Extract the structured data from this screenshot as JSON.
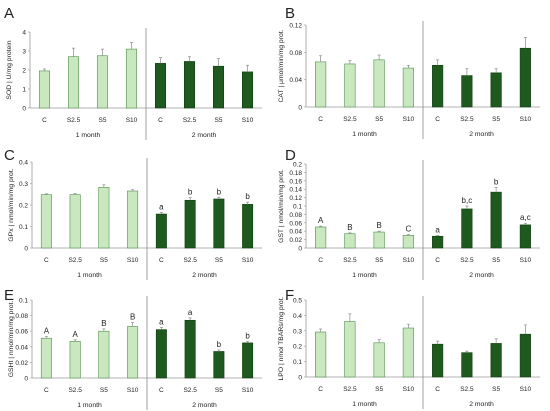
{
  "colors": {
    "month1_fill": "#c9e8c0",
    "month1_stroke": "#4f8f4a",
    "month2_fill": "#1e5a1e",
    "month2_stroke": "#123d12",
    "axis": "#9a9a9a",
    "error_bar": "#8a8a8a",
    "separator": "#8a8a8a",
    "text": "#222222"
  },
  "chart_data": [
    {
      "type": "bar",
      "panel": "A",
      "ylabel": "SOD | U/mg protein",
      "ylim": [
        0,
        4
      ],
      "yticks": [
        "0",
        "1",
        "2",
        "3",
        "4"
      ],
      "categories": [
        "C",
        "S2.5",
        "S5",
        "S10",
        "C",
        "S2.5",
        "S5",
        "S10"
      ],
      "groups": [
        "1 month",
        "2 month"
      ],
      "values": [
        1.95,
        2.7,
        2.75,
        3.1,
        2.35,
        2.45,
        2.2,
        1.9
      ],
      "errors": [
        0.1,
        0.45,
        0.35,
        0.35,
        0.3,
        0.25,
        0.4,
        0.35
      ],
      "letters": [
        "",
        "",
        "",
        "",
        "",
        "",
        "",
        ""
      ]
    },
    {
      "type": "bar",
      "panel": "B",
      "ylabel": "CAT | μmol/min/mg prot.",
      "ylim": [
        0,
        0.12
      ],
      "yticks": [
        "0",
        "0.04",
        "0.08",
        "0.12"
      ],
      "categories": [
        "C",
        "S2.5",
        "S5",
        "S10",
        "C",
        "S2.5",
        "S5",
        "S10"
      ],
      "groups": [
        "1 month",
        "2 month"
      ],
      "values": [
        0.066,
        0.063,
        0.069,
        0.057,
        0.061,
        0.046,
        0.05,
        0.086
      ],
      "errors": [
        0.009,
        0.005,
        0.007,
        0.004,
        0.008,
        0.01,
        0.006,
        0.016
      ],
      "letters": [
        "",
        "",
        "",
        "",
        "",
        "",
        "",
        ""
      ]
    },
    {
      "type": "bar",
      "panel": "C",
      "ylabel": "GPx | nmol/min/mg prot.",
      "ylim": [
        0,
        0.4
      ],
      "yticks": [
        "0",
        "0.1",
        "0.2",
        "0.3",
        "0.4"
      ],
      "categories": [
        "C",
        "S2.5",
        "S5",
        "S10",
        "C",
        "S2.5",
        "S5",
        "S10"
      ],
      "groups": [
        "1 month",
        "2 month"
      ],
      "values": [
        0.248,
        0.248,
        0.282,
        0.265,
        0.158,
        0.222,
        0.228,
        0.203
      ],
      "errors": [
        0.004,
        0.005,
        0.012,
        0.006,
        0.008,
        0.012,
        0.008,
        0.01
      ],
      "letters": [
        "",
        "",
        "",
        "",
        "a",
        "b",
        "b",
        "b"
      ]
    },
    {
      "type": "bar",
      "panel": "D",
      "ylabel": "GST | nmol/min/mg prot.",
      "ylim": [
        0,
        0.2
      ],
      "yticks": [
        "0",
        "0.02",
        "0.04",
        "0.06",
        "0.08",
        "0.1",
        "0.12",
        "0.14",
        "0.16",
        "0.18",
        "0.2"
      ],
      "categories": [
        "C",
        "S2.5",
        "S5",
        "S10",
        "C",
        "S2.5",
        "S5",
        "S10"
      ],
      "groups": [
        "1 month",
        "2 month"
      ],
      "values": [
        0.05,
        0.034,
        0.038,
        0.03,
        0.028,
        0.093,
        0.133,
        0.055
      ],
      "errors": [
        0.002,
        0.002,
        0.002,
        0.002,
        0.002,
        0.007,
        0.011,
        0.004
      ],
      "letters": [
        "A",
        "B",
        "B",
        "C",
        "a",
        "b,c",
        "b",
        "a,c"
      ]
    },
    {
      "type": "bar",
      "panel": "E",
      "ylabel": "GSHt | nmol/min/mg prot.",
      "ylim": [
        0,
        0.1
      ],
      "yticks": [
        "0",
        "0.02",
        "0.04",
        "0.06",
        "0.08",
        "0.1"
      ],
      "categories": [
        "C",
        "S2.5",
        "S5",
        "S10",
        "C",
        "S2.5",
        "S5",
        "S10"
      ],
      "groups": [
        "1 month",
        "2 month"
      ],
      "values": [
        0.051,
        0.047,
        0.06,
        0.066,
        0.062,
        0.074,
        0.034,
        0.045
      ],
      "errors": [
        0.002,
        0.002,
        0.003,
        0.005,
        0.003,
        0.003,
        0.002,
        0.002
      ],
      "letters": [
        "A",
        "A",
        "B",
        "B",
        "a",
        "a",
        "b",
        "b"
      ]
    },
    {
      "type": "bar",
      "panel": "F",
      "ylabel": "LPO | nmol TBARs/mg prot.",
      "ylim": [
        0,
        0.5
      ],
      "yticks": [
        "0",
        "0.1",
        "0.2",
        "0.3",
        "0.4",
        "0.5"
      ],
      "categories": [
        "C",
        "S2.5",
        "S5",
        "S10",
        "C",
        "S2.5",
        "S5",
        "S10"
      ],
      "groups": [
        "1 month",
        "2 month"
      ],
      "values": [
        0.292,
        0.36,
        0.222,
        0.318,
        0.213,
        0.158,
        0.218,
        0.278
      ],
      "errors": [
        0.02,
        0.05,
        0.02,
        0.025,
        0.02,
        0.01,
        0.03,
        0.06
      ],
      "letters": [
        "",
        "",
        "",
        "",
        "",
        "",
        "",
        ""
      ]
    }
  ]
}
